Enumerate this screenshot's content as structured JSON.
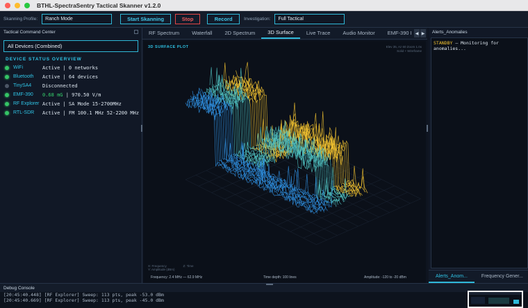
{
  "window": {
    "title": "BTHL-SpectraSentry Tactical Skanner v1.2.0"
  },
  "toolbar": {
    "profile_label": "Skanning Profile:",
    "profile_value": "Ranch Mode",
    "start_label": "Start Skanning",
    "stop_label": "Stop",
    "record_label": "Record",
    "investigation_label": "Investigation:",
    "investigation_value": "Full Tactical"
  },
  "left_panel": {
    "title": "Tactical Command Center",
    "device_select": "All Devices (Combined)",
    "section_title": "DEVICE STATUS OVERVIEW",
    "devices": [
      {
        "name": "WiFi",
        "status": "Active | 0 networks",
        "state": "on"
      },
      {
        "name": "Bluetooth",
        "status": "Active | 64 devices",
        "state": "on"
      },
      {
        "name": "TinySA4",
        "status": "Disconnected",
        "state": "off"
      },
      {
        "name": "EMF-390",
        "status_highlight": "0.68 mG",
        "status": " | 970.50 V/m",
        "state": "on"
      },
      {
        "name": "RF Explorer",
        "status": "Active | SA Mode  15-2700MHz",
        "state": "on"
      },
      {
        "name": "RTL-SDR",
        "status": "Active | FM 100.1 MHz  52-2200 MHz",
        "state": "on"
      }
    ]
  },
  "center": {
    "tabs": [
      "RF Spectrum",
      "Waterfall",
      "2D Spectrum",
      "3D Surface",
      "Live Trace",
      "Audio Monitor",
      "EMF-390 I"
    ],
    "active_tab": 3,
    "plot_title": "3D SURFACE PLOT",
    "plot_info_1": "Elev 35, Az 60 Zoom 1.0x",
    "plot_info_2": "Solid + Wireframe",
    "axis_x": "X: Frequency",
    "axis_z": "Z: Time",
    "axis_y": "Y: Amplitude (dBm)",
    "footer_freq": "Frequency: 2.4 MHz — 62.9 MHz",
    "footer_time": "Time depth: 100 lines",
    "footer_amp": "Amplitude: -120 to -20 dBm",
    "colors": {
      "peak": "#f2c230",
      "mid": "#4fc0c0",
      "low": "#2f8fe0"
    }
  },
  "right_panel": {
    "title": "Alerts_Anomalies",
    "alert_status": "STANDBY",
    "alert_text": " — Monitoring for anomalies...",
    "tabs": [
      "Alerts_Anom...",
      "Frequency Gener..."
    ]
  },
  "debug": {
    "title": "Debug Console",
    "lines": [
      "[20:45:40.448] [RF Explorer] Sweep: 113 pts, peak -53.0 dBm",
      "[20:45:40.669] [RF Explorer] Sweep: 113 pts, peak -45.0 dBm"
    ]
  }
}
